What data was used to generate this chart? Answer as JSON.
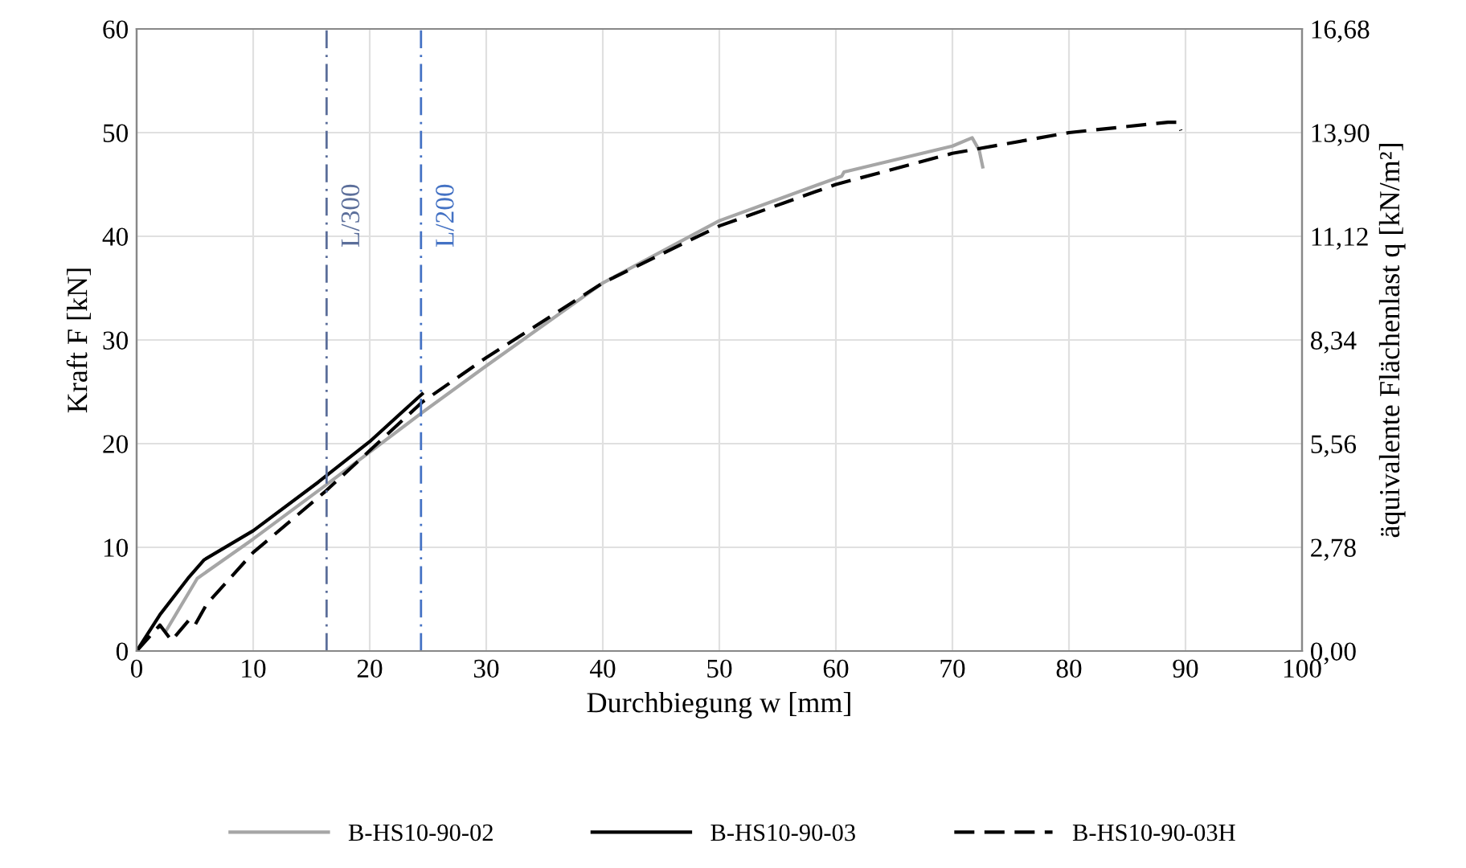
{
  "chart_data": {
    "type": "line",
    "xlabel": "Durchbiegung w [mm]",
    "ylabel": "Kraft F [kN]",
    "y2label": "äquivalente Flächenlast q [kN/m²]",
    "xlim": [
      0,
      100
    ],
    "xticks": [
      0,
      10,
      20,
      30,
      40,
      50,
      60,
      70,
      80,
      90,
      100
    ],
    "ylim": [
      0,
      60
    ],
    "yticks": [
      0,
      10,
      20,
      30,
      40,
      50,
      60
    ],
    "y2lim": [
      0,
      16.68
    ],
    "y2ticks": [
      {
        "value": 0,
        "label": "0,00"
      },
      {
        "value": 2.78,
        "label": "2,78"
      },
      {
        "value": 5.56,
        "label": "5,56"
      },
      {
        "value": 8.34,
        "label": "8,34"
      },
      {
        "value": 11.12,
        "label": "11,12"
      },
      {
        "value": 13.9,
        "label": "13,90"
      },
      {
        "value": 16.68,
        "label": "16,68"
      }
    ],
    "grid": true,
    "legend": "bottom",
    "marker": "none",
    "ref_lines": [
      {
        "axis": "x",
        "value": 16.3,
        "label": "L/300",
        "color": "#5b6e9a",
        "line_style": "dashdot"
      },
      {
        "axis": "x",
        "value": 24.4,
        "label": "L/200",
        "color": "#4472c4",
        "line_style": "dashdot"
      }
    ],
    "series": [
      {
        "name": "B-HS10-90-02",
        "color": "#a6a6a6",
        "line_style": "solid",
        "x": [
          2.5,
          5.2,
          10,
          16,
          24.5,
          30,
          40,
          50,
          60.5,
          60.7,
          70,
          71.7,
          72.3,
          72.6
        ],
        "values": [
          1.9,
          7.0,
          10.8,
          15.8,
          23,
          27.5,
          35.5,
          41.5,
          45.8,
          46.2,
          48.7,
          49.5,
          48.3,
          46.7
        ]
      },
      {
        "name": "B-HS10-90-03",
        "color": "#000000",
        "line_style": "solid",
        "x": [
          0,
          2,
          4.4,
          5.8,
          10,
          15.6,
          20,
          24.5
        ],
        "values": [
          0,
          3.5,
          7.0,
          8.8,
          11.6,
          16.3,
          20.2,
          24.8
        ]
      },
      {
        "name": "B-HS10-90-03H",
        "color": "#000000",
        "line_style": "dashed",
        "x": [
          0,
          2,
          3,
          4.5,
          5,
          6,
          10,
          16.3,
          24.5,
          30,
          40,
          50,
          60,
          70,
          80,
          88.5,
          89.4,
          89.6
        ],
        "values": [
          0,
          2.5,
          1,
          3,
          2.5,
          4.5,
          9.5,
          15.5,
          24,
          28.3,
          35.5,
          41,
          45,
          48,
          50,
          51,
          51,
          50.2
        ]
      }
    ]
  }
}
